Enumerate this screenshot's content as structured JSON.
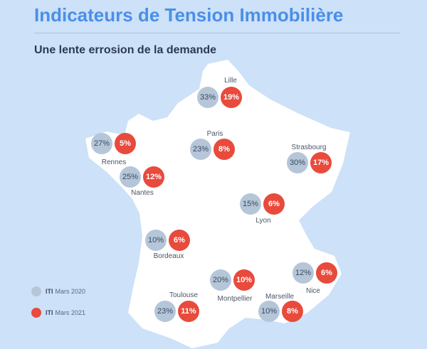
{
  "title": "Indicateurs de Tension Immobilière",
  "subtitle": "Une lente errosion de la demande",
  "legend": [
    {
      "prefix": "ITI",
      "label": "Mars 2020",
      "color": "#b5c6d8"
    },
    {
      "prefix": "ITI",
      "label": "Mars 2021",
      "color": "#e84a3c"
    }
  ],
  "cities": [
    {
      "name": "Lille",
      "v2020": "33%",
      "v2021": "19%"
    },
    {
      "name": "Paris",
      "v2020": "23%",
      "v2021": "8%"
    },
    {
      "name": "Strasbourg",
      "v2020": "30%",
      "v2021": "17%"
    },
    {
      "name": "Rennes",
      "v2020": "27%",
      "v2021": "5%"
    },
    {
      "name": "Nantes",
      "v2020": "25%",
      "v2021": "12%"
    },
    {
      "name": "Lyon",
      "v2020": "15%",
      "v2021": "6%"
    },
    {
      "name": "Bordeaux",
      "v2020": "10%",
      "v2021": "6%"
    },
    {
      "name": "Nice",
      "v2020": "12%",
      "v2021": "6%"
    },
    {
      "name": "Montpellier",
      "v2020": "20%",
      "v2021": "10%"
    },
    {
      "name": "Toulouse",
      "v2020": "23%",
      "v2021": "11%"
    },
    {
      "name": "Marseille",
      "v2020": "10%",
      "v2021": "8%"
    }
  ]
}
